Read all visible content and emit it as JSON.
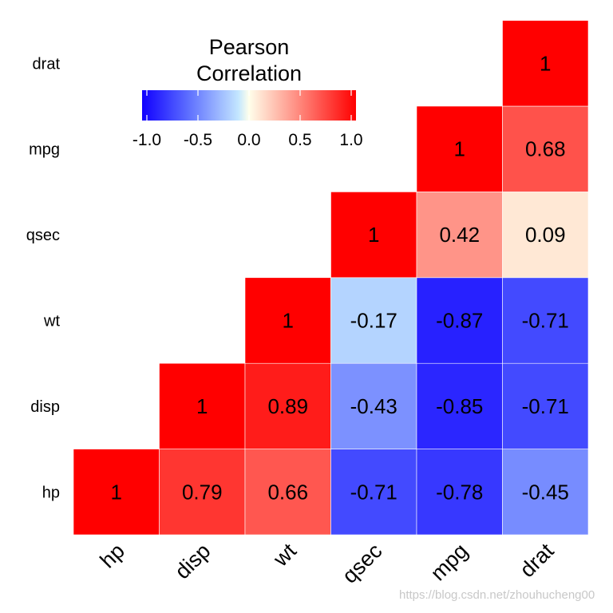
{
  "chart_data": {
    "type": "heatmap",
    "title": "",
    "x_categories": [
      "hp",
      "disp",
      "wt",
      "qsec",
      "mpg",
      "drat"
    ],
    "y_categories": [
      "hp",
      "disp",
      "wt",
      "qsec",
      "mpg",
      "drat"
    ],
    "cells": [
      {
        "x": "hp",
        "y": "hp",
        "value": 1
      },
      {
        "x": "disp",
        "y": "hp",
        "value": 0.79
      },
      {
        "x": "wt",
        "y": "hp",
        "value": 0.66
      },
      {
        "x": "qsec",
        "y": "hp",
        "value": -0.71
      },
      {
        "x": "mpg",
        "y": "hp",
        "value": -0.78
      },
      {
        "x": "drat",
        "y": "hp",
        "value": -0.45
      },
      {
        "x": "disp",
        "y": "disp",
        "value": 1
      },
      {
        "x": "wt",
        "y": "disp",
        "value": 0.89
      },
      {
        "x": "qsec",
        "y": "disp",
        "value": -0.43
      },
      {
        "x": "mpg",
        "y": "disp",
        "value": -0.85
      },
      {
        "x": "drat",
        "y": "disp",
        "value": -0.71
      },
      {
        "x": "wt",
        "y": "wt",
        "value": 1
      },
      {
        "x": "qsec",
        "y": "wt",
        "value": -0.17
      },
      {
        "x": "mpg",
        "y": "wt",
        "value": -0.87
      },
      {
        "x": "drat",
        "y": "wt",
        "value": -0.71
      },
      {
        "x": "qsec",
        "y": "qsec",
        "value": 1
      },
      {
        "x": "mpg",
        "y": "qsec",
        "value": 0.42
      },
      {
        "x": "drat",
        "y": "qsec",
        "value": 0.09
      },
      {
        "x": "mpg",
        "y": "mpg",
        "value": 1
      },
      {
        "x": "drat",
        "y": "mpg",
        "value": 0.68
      },
      {
        "x": "drat",
        "y": "drat",
        "value": 1
      }
    ],
    "legend": {
      "title_line1": "Pearson",
      "title_line2": "Correlation",
      "range": [
        -1,
        1
      ],
      "ticks": [
        "-1.0",
        "-0.5",
        "0.0",
        "0.5",
        "1.0"
      ],
      "tick_values": [
        -1,
        -0.5,
        0,
        0.5,
        1
      ],
      "placement": "top-left"
    },
    "colors": {
      "low": "#0000ff",
      "mid": "#ffffff",
      "high": "#ff0000"
    },
    "grid": false
  },
  "watermark": "https://blog.csdn.net/zhouhucheng00"
}
